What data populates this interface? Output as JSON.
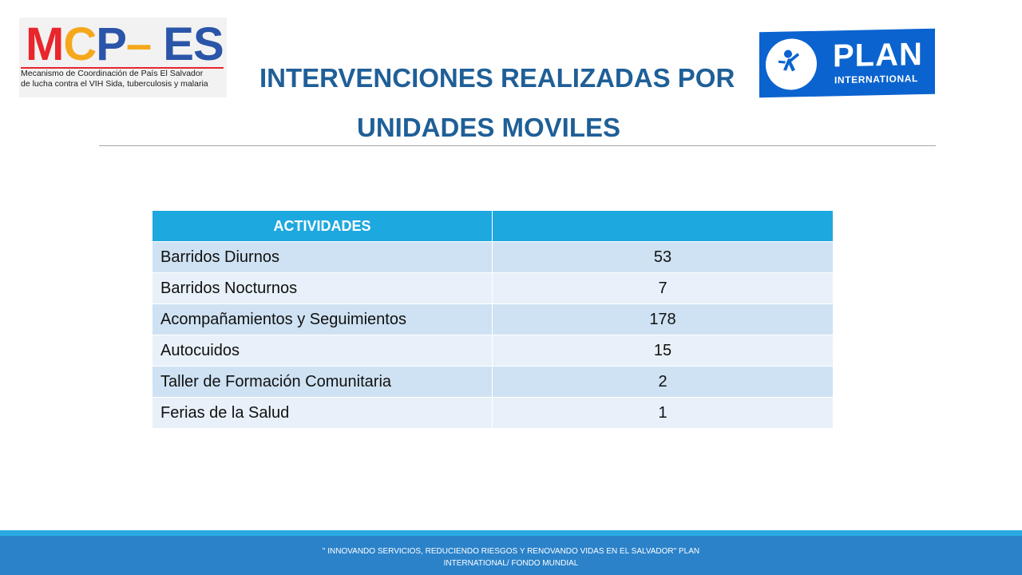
{
  "logos": {
    "mcp": {
      "m": "M",
      "c": "C",
      "p": "P",
      "dash": "–",
      "es": " ES",
      "subtitle_line1": "Mecanismo de Coordinación de País El Salvador",
      "subtitle_line2": "de lucha contra el VIH Sida, tuberculosis y malaria",
      "colors": {
        "red": "#e8262c",
        "orange": "#f6a81c",
        "blue": "#2a55a8"
      }
    },
    "plan": {
      "word": "PLAN",
      "sub": "INTERNATIONAL",
      "color": "#0b63cf"
    }
  },
  "title": {
    "line1": "INTERVENCIONES REALIZADAS POR",
    "line2": "UNIDADES MOVILES",
    "color": "#1f5f97"
  },
  "table": {
    "headers": [
      "ACTIVIDADES",
      ""
    ],
    "rows": [
      {
        "activity": "Barridos Diurnos",
        "value": "53"
      },
      {
        "activity": "Barridos Nocturnos",
        "value": "7"
      },
      {
        "activity": "Acompañamientos y Seguimientos",
        "value": "178"
      },
      {
        "activity": "Autocuidos",
        "value": "15"
      },
      {
        "activity": "Taller de Formación Comunitaria",
        "value": "2"
      },
      {
        "activity": "Ferias de la Salud",
        "value": "1"
      }
    ],
    "colors": {
      "header": "#1ea8e0",
      "row_a": "#cfe2f3",
      "row_b": "#e8f1f9"
    }
  },
  "footer": {
    "line1": "\" INNOVANDO SERVICIOS, REDUCIENDO RIESGOS Y RENOVANDO VIDAS EN EL SALVADOR\" PLAN",
    "line2": "INTERNATIONAL/ FONDO MUNDIAL",
    "color": "#2b82c9"
  }
}
